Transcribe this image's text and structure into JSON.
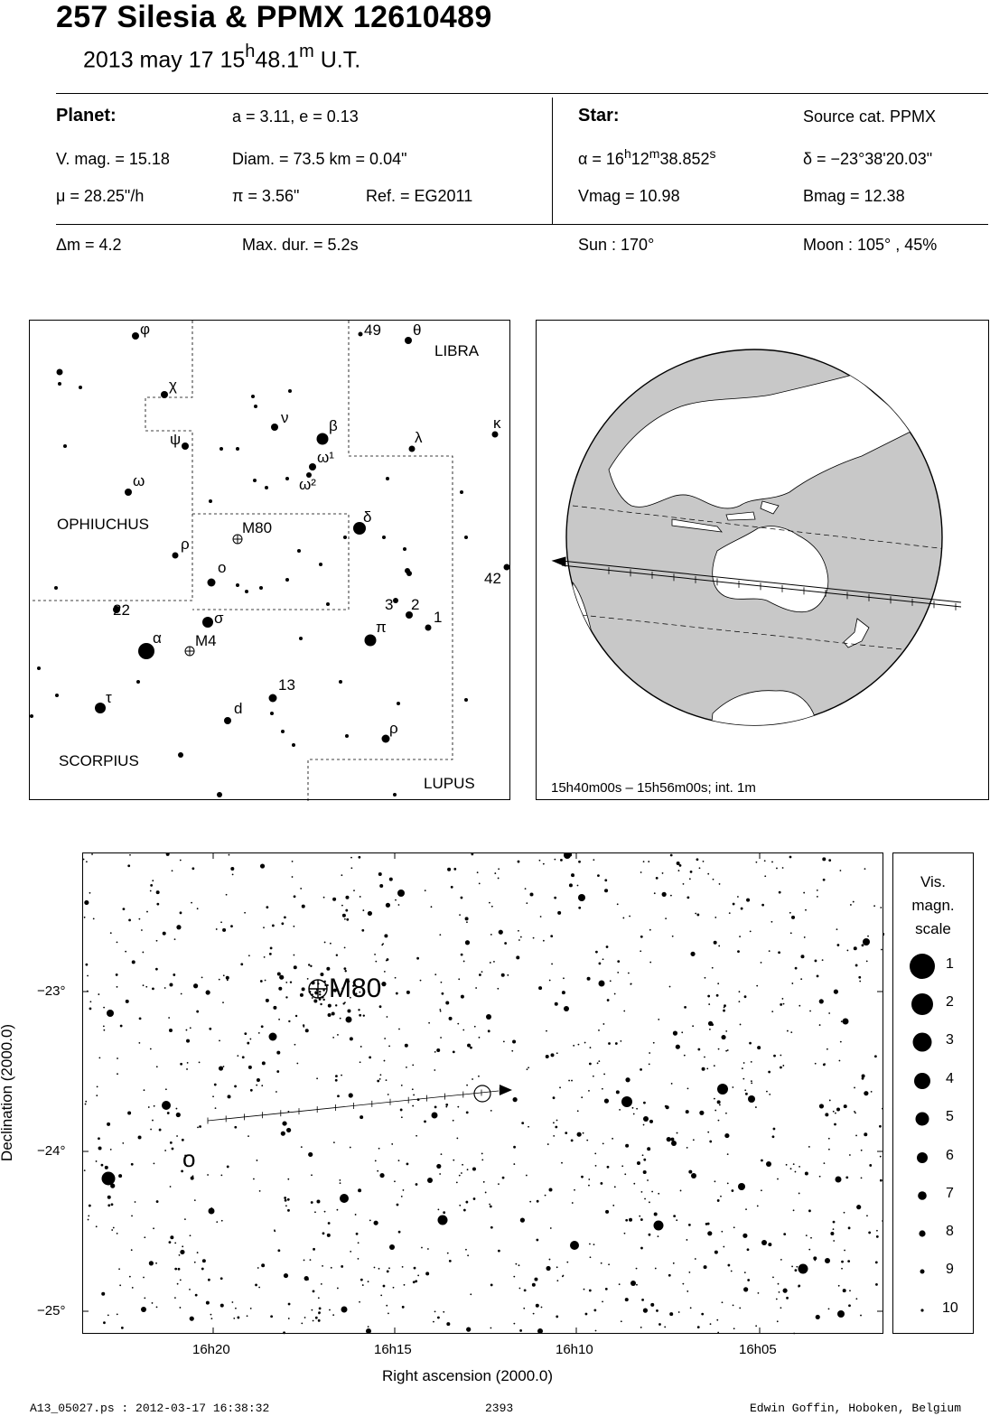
{
  "header": {
    "title": "257 Silesia  &  PPMX 12610489",
    "date_text": "2013 may 17  15",
    "time_hours_sup": "h",
    "time_minutes": "48.1",
    "time_minutes_sup": "m",
    "time_suffix": " U.T."
  },
  "planet": {
    "heading": "Planet:",
    "orbit": "a = 3.11, e = 0.13",
    "vmag": "V. mag. = 15.18",
    "diam": "Diam. = 73.5 km = 0.04\"",
    "mu": "μ =  28.25\"/h",
    "pi": "π =  3.56\"",
    "ref": "Ref. = EG2011"
  },
  "star": {
    "heading": "Star:",
    "source": "Source cat.  PPMX",
    "ra_prefix": "α = 16",
    "ra_h": "h",
    "ra_mid": "12",
    "ra_m": "m",
    "ra_sec": "38.852",
    "ra_s": "s",
    "dec": "δ = −23°38'20.03\"",
    "vmag": "Vmag = 10.98",
    "bmag": "Bmag = 12.38"
  },
  "event": {
    "delta_m": "Δm = 4.2",
    "max_dur": "Max. dur. = 5.2s",
    "sun": "Sun : 170°",
    "moon": "Moon : 105° , 45%"
  },
  "finder_chart": {
    "constellations": [
      "OPHIUCHUS",
      "LIBRA",
      "SCORPIUS",
      "LUPUS"
    ],
    "labels": [
      "φ",
      "χ",
      "ψ",
      "ω",
      "ρ",
      "22",
      "α",
      "τ",
      "ν",
      "β",
      "ω¹",
      "ω²",
      "M80",
      "o",
      "σ",
      "M4",
      "13",
      "d",
      "49",
      "θ",
      "λ",
      "κ",
      "δ",
      "42",
      "3",
      "2",
      "1",
      "π",
      "ρ"
    ]
  },
  "earth_panel": {
    "caption": "15h40m00s – 15h56m00s; int.  1m"
  },
  "detail_chart": {
    "object_label": "M80",
    "star_label": "o",
    "ra_ticks": [
      "16h20",
      "16h15",
      "16h10",
      "16h05"
    ],
    "dec_ticks": [
      "−23°",
      "−24°",
      "−25°"
    ],
    "xlabel": "Right ascension (2000.0)",
    "ylabel": "Declination (2000.0)"
  },
  "mag_scale": {
    "title_line1": "Vis.",
    "title_line2": "magn.",
    "title_line3": "scale",
    "values": [
      "1",
      "2",
      "3",
      "4",
      "5",
      "6",
      "7",
      "8",
      "9",
      "10"
    ]
  },
  "footer": {
    "left": "A13_05027.ps : 2012-03-17 16:38:32",
    "center": "2393",
    "right": "Edwin Goffin, Hoboken, Belgium"
  },
  "colors": {
    "ink": "#000000",
    "ocean": "#c8c8c8",
    "land": "#ffffff"
  }
}
